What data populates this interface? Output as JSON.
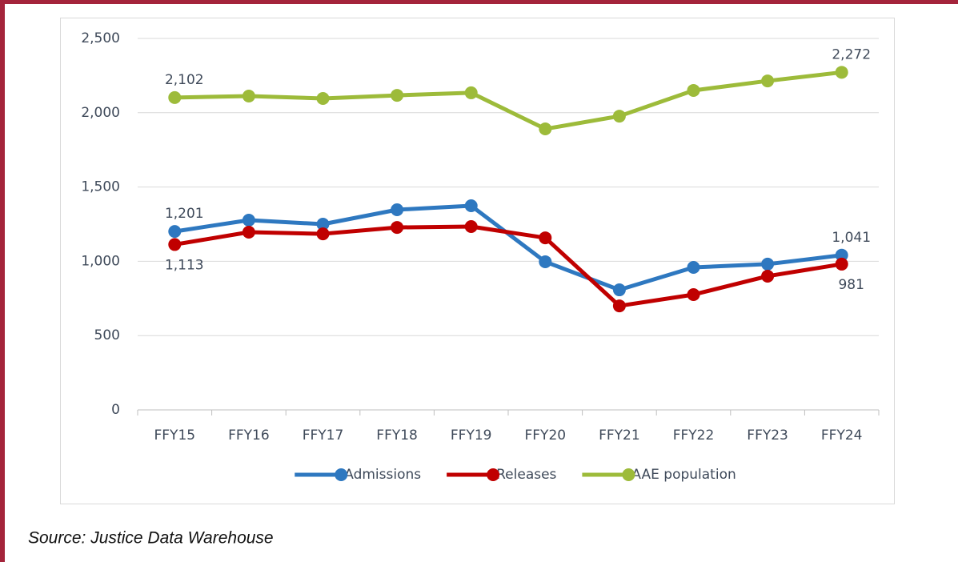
{
  "chart_data": {
    "type": "line",
    "categories": [
      "FFY15",
      "FFY16",
      "FFY17",
      "FFY18",
      "FFY19",
      "FFY20",
      "FFY21",
      "FFY22",
      "FFY23",
      "FFY24"
    ],
    "series": [
      {
        "name": "Admissions",
        "color": "#2e78c0",
        "values": [
          1201,
          1277,
          1250,
          1347,
          1374,
          997,
          808,
          959,
          981,
          1041
        ],
        "value_labels": [
          "1,201",
          null,
          null,
          null,
          null,
          null,
          null,
          null,
          null,
          "1,041"
        ]
      },
      {
        "name": "Releases",
        "color": "#c00000",
        "values": [
          1113,
          1196,
          1185,
          1228,
          1234,
          1158,
          700,
          776,
          900,
          981
        ],
        "value_labels": [
          "1,113",
          null,
          null,
          null,
          null,
          null,
          null,
          null,
          null,
          "981"
        ]
      },
      {
        "name": "AAE population",
        "color": "#9dbb3a",
        "values": [
          2102,
          2112,
          2096,
          2117,
          2134,
          1891,
          1977,
          2150,
          2214,
          2272
        ],
        "value_labels": [
          "2,102",
          null,
          null,
          null,
          null,
          null,
          null,
          null,
          null,
          "2,272"
        ]
      }
    ],
    "ylim": [
      0,
      2500
    ],
    "yticks": [
      0,
      500,
      {
        "value": 1000,
        "label": "1,000"
      },
      {
        "value": 1500,
        "label": "1,500"
      },
      {
        "value": 2000,
        "label": "2,000"
      },
      {
        "value": 2500,
        "label": "2,500"
      }
    ],
    "grid": true,
    "legend": "bottom",
    "source": "Source: Justice Data Warehouse"
  }
}
